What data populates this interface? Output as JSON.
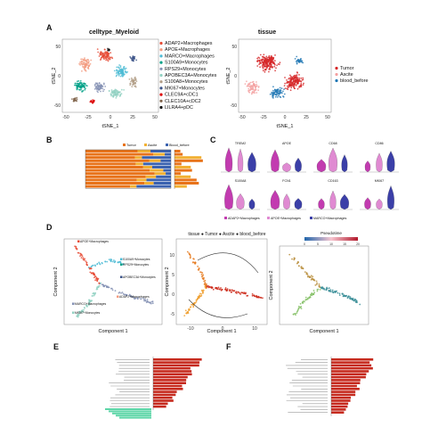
{
  "panels": {
    "A": {
      "label": "A",
      "left": {
        "title": "celltype_Myeloid",
        "xlabel": "tSNE_1",
        "ylabel": "tSNE_2",
        "xticks": [
          "-50",
          "-25",
          "0",
          "25",
          "50"
        ],
        "yticks": [
          "50",
          "0",
          "-50"
        ],
        "legend": [
          "ADAP2+Macrophages",
          "APOE+Macrophages",
          "MARCO+Macrophages",
          "S100A9+Monocytes",
          "RPS29+Monocytes",
          "APOBEC3A+Monocytes",
          "S100A8+Monocytes",
          "MKI67+Monocytes",
          "CLEC9A+cDC1",
          "CLEC10A+cDC2",
          "LILRA4+pDC"
        ],
        "legend_colors": [
          "#e64b35",
          "#f39b7f",
          "#4dbbd5",
          "#00a087",
          "#8491b4",
          "#91d1c2",
          "#b09c85",
          "#3c5488",
          "#dc0000",
          "#7e6148",
          "#111111"
        ]
      },
      "right": {
        "title": "tissue",
        "xlabel": "tSNE_1",
        "ylabel": "tSNE_2",
        "xticks": [
          "-50",
          "-25",
          "0",
          "25",
          "50"
        ],
        "yticks": [
          "50",
          "0",
          "-50"
        ],
        "legend": [
          "Tumor",
          "Ascite",
          "blood_before"
        ],
        "legend_colors": [
          "#d62728",
          "#f4a0a0",
          "#1f77b4"
        ]
      }
    },
    "B": {
      "label": "B",
      "legend": [
        "Tumor",
        "Ascite",
        "Blood_before"
      ],
      "legend_colors": [
        "#e8731a",
        "#f2b134",
        "#3a62b0"
      ]
    },
    "C": {
      "label": "C",
      "genes": [
        "TREM2",
        "APOE",
        "CD68",
        "CD86",
        "S100A8",
        "FCN1",
        "CD163",
        "MKI67"
      ],
      "legend": [
        "ADAP2+Macrophages",
        "APOE+Macrophages",
        "MARCO+Macrophages"
      ],
      "colors": [
        "#c23bb0",
        "#e08ad2",
        "#3b3fa8"
      ]
    },
    "D": {
      "label": "D",
      "p1": {
        "xlabel": "Component 1",
        "ylabel": "Component 2",
        "legend": [
          "APOE+Macrophages",
          "S100A9+Monocytes",
          "RPS29+Monocytes",
          "APOBEC3A+Monocytes",
          "ADAP2+Macrophages",
          "MARCO+Macrophages",
          "MKI67+Monocytes"
        ]
      },
      "p2": {
        "xlabel": "Component 1",
        "ylabel": "Component 2",
        "legend": "tissue ● Tumor ● Ascite ● blood_before",
        "xticks": [
          "-10",
          "0",
          "10"
        ],
        "yticks": [
          "10",
          "5",
          "0",
          "-5"
        ]
      },
      "p3": {
        "xlabel": "Component 1",
        "ylabel": "Component 2",
        "legend": "Pseudotime",
        "scale": [
          "0",
          "5",
          "10",
          "15",
          "20"
        ]
      }
    },
    "E": {
      "label": "E"
    },
    "F": {
      "label": "F"
    }
  }
}
